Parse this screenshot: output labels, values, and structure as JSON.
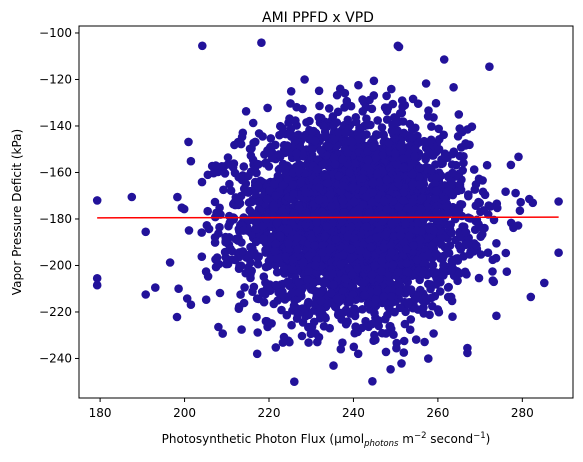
{
  "chart_data": {
    "type": "scatter",
    "title": "AMI PPFD x VPD",
    "xlabel": {
      "prefix": "Photosynthetic Photon Flux (µmol",
      "subscript": "photons",
      "middle": " m",
      "sup1": "−2",
      "middle2": " second",
      "sup2": "−1",
      "suffix": ")"
    },
    "ylabel": "Vapor Pressure Deficit (kPa)",
    "xlim": [
      175,
      292
    ],
    "ylim": [
      -257,
      -97
    ],
    "xticks": [
      180,
      200,
      220,
      240,
      260,
      280
    ],
    "yticks": [
      -100,
      -120,
      -140,
      -160,
      -180,
      -200,
      -220,
      -240
    ],
    "point_color": "#22129a",
    "line_color": "#ff0000",
    "grid": false,
    "cluster": {
      "center_x": 240,
      "center_y": -180,
      "std_x": 13,
      "std_y": 20,
      "approx_count": 4000
    },
    "outliers": [
      {
        "x": 179.3,
        "y": -172
      },
      {
        "x": 179.3,
        "y": -205.5
      },
      {
        "x": 179.3,
        "y": -208.5
      },
      {
        "x": 190.8,
        "y": -185.5
      },
      {
        "x": 190.8,
        "y": -212.5
      },
      {
        "x": 204.2,
        "y": -105.5
      },
      {
        "x": 218.2,
        "y": -104.2
      },
      {
        "x": 250.5,
        "y": -105.5
      },
      {
        "x": 250.8,
        "y": -106
      },
      {
        "x": 272.2,
        "y": -114.5
      },
      {
        "x": 288.6,
        "y": -172.5
      },
      {
        "x": 288.6,
        "y": -194.5
      },
      {
        "x": 285.2,
        "y": -207.5
      },
      {
        "x": 282.0,
        "y": -213.5
      },
      {
        "x": 226.0,
        "y": -250.0
      },
      {
        "x": 244.5,
        "y": -249.8
      },
      {
        "x": 267.0,
        "y": -235.5
      },
      {
        "x": 198.6,
        "y": -210.0
      },
      {
        "x": 217.2,
        "y": -238.0
      }
    ],
    "trend_line": {
      "x": [
        179.3,
        288.6
      ],
      "y": [
        -179.5,
        -179.2
      ]
    }
  }
}
